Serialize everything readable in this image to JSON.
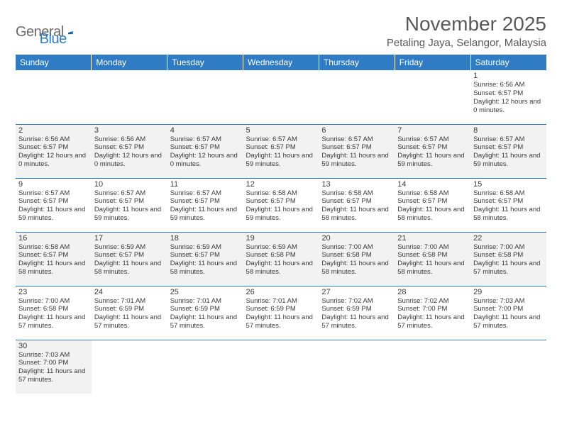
{
  "logo": {
    "word1": "General",
    "word2": "Blue"
  },
  "title": "November 2025",
  "location": "Petaling Jaya, Selangor, Malaysia",
  "weekdays": [
    "Sunday",
    "Monday",
    "Tuesday",
    "Wednesday",
    "Thursday",
    "Friday",
    "Saturday"
  ],
  "colors": {
    "header_bg": "#2f7cc4",
    "header_text": "#ffffff",
    "cell_border": "#2f7cc4",
    "shaded_bg": "#f2f2f2",
    "text": "#3a3a3a",
    "title_text": "#595959"
  },
  "rows": [
    {
      "shaded": false,
      "cells": [
        {
          "empty": true
        },
        {
          "empty": true
        },
        {
          "empty": true
        },
        {
          "empty": true
        },
        {
          "empty": true
        },
        {
          "empty": true
        },
        {
          "n": "1",
          "sr": "Sunrise: 6:56 AM",
          "ss": "Sunset: 6:57 PM",
          "dl": "Daylight: 12 hours and 0 minutes."
        }
      ]
    },
    {
      "shaded": true,
      "cells": [
        {
          "n": "2",
          "sr": "Sunrise: 6:56 AM",
          "ss": "Sunset: 6:57 PM",
          "dl": "Daylight: 12 hours and 0 minutes."
        },
        {
          "n": "3",
          "sr": "Sunrise: 6:56 AM",
          "ss": "Sunset: 6:57 PM",
          "dl": "Daylight: 12 hours and 0 minutes."
        },
        {
          "n": "4",
          "sr": "Sunrise: 6:57 AM",
          "ss": "Sunset: 6:57 PM",
          "dl": "Daylight: 12 hours and 0 minutes."
        },
        {
          "n": "5",
          "sr": "Sunrise: 6:57 AM",
          "ss": "Sunset: 6:57 PM",
          "dl": "Daylight: 11 hours and 59 minutes."
        },
        {
          "n": "6",
          "sr": "Sunrise: 6:57 AM",
          "ss": "Sunset: 6:57 PM",
          "dl": "Daylight: 11 hours and 59 minutes."
        },
        {
          "n": "7",
          "sr": "Sunrise: 6:57 AM",
          "ss": "Sunset: 6:57 PM",
          "dl": "Daylight: 11 hours and 59 minutes."
        },
        {
          "n": "8",
          "sr": "Sunrise: 6:57 AM",
          "ss": "Sunset: 6:57 PM",
          "dl": "Daylight: 11 hours and 59 minutes."
        }
      ]
    },
    {
      "shaded": false,
      "cells": [
        {
          "n": "9",
          "sr": "Sunrise: 6:57 AM",
          "ss": "Sunset: 6:57 PM",
          "dl": "Daylight: 11 hours and 59 minutes."
        },
        {
          "n": "10",
          "sr": "Sunrise: 6:57 AM",
          "ss": "Sunset: 6:57 PM",
          "dl": "Daylight: 11 hours and 59 minutes."
        },
        {
          "n": "11",
          "sr": "Sunrise: 6:57 AM",
          "ss": "Sunset: 6:57 PM",
          "dl": "Daylight: 11 hours and 59 minutes."
        },
        {
          "n": "12",
          "sr": "Sunrise: 6:58 AM",
          "ss": "Sunset: 6:57 PM",
          "dl": "Daylight: 11 hours and 59 minutes."
        },
        {
          "n": "13",
          "sr": "Sunrise: 6:58 AM",
          "ss": "Sunset: 6:57 PM",
          "dl": "Daylight: 11 hours and 58 minutes."
        },
        {
          "n": "14",
          "sr": "Sunrise: 6:58 AM",
          "ss": "Sunset: 6:57 PM",
          "dl": "Daylight: 11 hours and 58 minutes."
        },
        {
          "n": "15",
          "sr": "Sunrise: 6:58 AM",
          "ss": "Sunset: 6:57 PM",
          "dl": "Daylight: 11 hours and 58 minutes."
        }
      ]
    },
    {
      "shaded": true,
      "cells": [
        {
          "n": "16",
          "sr": "Sunrise: 6:58 AM",
          "ss": "Sunset: 6:57 PM",
          "dl": "Daylight: 11 hours and 58 minutes."
        },
        {
          "n": "17",
          "sr": "Sunrise: 6:59 AM",
          "ss": "Sunset: 6:57 PM",
          "dl": "Daylight: 11 hours and 58 minutes."
        },
        {
          "n": "18",
          "sr": "Sunrise: 6:59 AM",
          "ss": "Sunset: 6:57 PM",
          "dl": "Daylight: 11 hours and 58 minutes."
        },
        {
          "n": "19",
          "sr": "Sunrise: 6:59 AM",
          "ss": "Sunset: 6:58 PM",
          "dl": "Daylight: 11 hours and 58 minutes."
        },
        {
          "n": "20",
          "sr": "Sunrise: 7:00 AM",
          "ss": "Sunset: 6:58 PM",
          "dl": "Daylight: 11 hours and 58 minutes."
        },
        {
          "n": "21",
          "sr": "Sunrise: 7:00 AM",
          "ss": "Sunset: 6:58 PM",
          "dl": "Daylight: 11 hours and 58 minutes."
        },
        {
          "n": "22",
          "sr": "Sunrise: 7:00 AM",
          "ss": "Sunset: 6:58 PM",
          "dl": "Daylight: 11 hours and 57 minutes."
        }
      ]
    },
    {
      "shaded": false,
      "cells": [
        {
          "n": "23",
          "sr": "Sunrise: 7:00 AM",
          "ss": "Sunset: 6:58 PM",
          "dl": "Daylight: 11 hours and 57 minutes."
        },
        {
          "n": "24",
          "sr": "Sunrise: 7:01 AM",
          "ss": "Sunset: 6:59 PM",
          "dl": "Daylight: 11 hours and 57 minutes."
        },
        {
          "n": "25",
          "sr": "Sunrise: 7:01 AM",
          "ss": "Sunset: 6:59 PM",
          "dl": "Daylight: 11 hours and 57 minutes."
        },
        {
          "n": "26",
          "sr": "Sunrise: 7:01 AM",
          "ss": "Sunset: 6:59 PM",
          "dl": "Daylight: 11 hours and 57 minutes."
        },
        {
          "n": "27",
          "sr": "Sunrise: 7:02 AM",
          "ss": "Sunset: 6:59 PM",
          "dl": "Daylight: 11 hours and 57 minutes."
        },
        {
          "n": "28",
          "sr": "Sunrise: 7:02 AM",
          "ss": "Sunset: 7:00 PM",
          "dl": "Daylight: 11 hours and 57 minutes."
        },
        {
          "n": "29",
          "sr": "Sunrise: 7:03 AM",
          "ss": "Sunset: 7:00 PM",
          "dl": "Daylight: 11 hours and 57 minutes."
        }
      ]
    },
    {
      "shaded": true,
      "cells": [
        {
          "n": "30",
          "sr": "Sunrise: 7:03 AM",
          "ss": "Sunset: 7:00 PM",
          "dl": "Daylight: 11 hours and 57 minutes."
        },
        {
          "empty": true
        },
        {
          "empty": true
        },
        {
          "empty": true
        },
        {
          "empty": true
        },
        {
          "empty": true
        },
        {
          "empty": true
        }
      ]
    }
  ]
}
